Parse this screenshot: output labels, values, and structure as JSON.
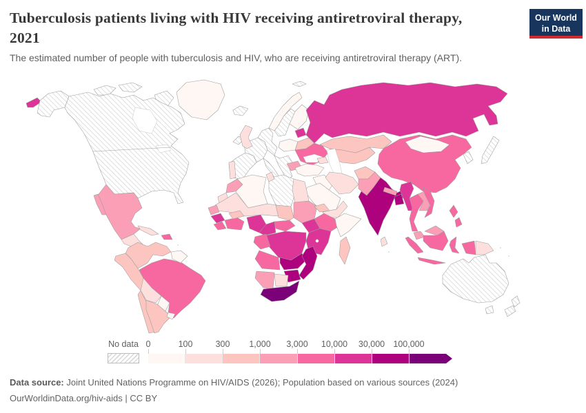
{
  "header": {
    "title_line1": "Tuberculosis patients living with HIV receiving antiretroviral therapy,",
    "title_line2": "2021",
    "subtitle": "The estimated number of people with tuberculosis and HIV, who are receiving antiretroviral therapy (ART).",
    "logo": {
      "line1": "Our World",
      "line2": "in Data",
      "bg_color": "#18365d",
      "accent_color": "#d12b31"
    }
  },
  "legend": {
    "no_data_label": "No data",
    "tick_labels": [
      "0",
      "100",
      "300",
      "1,000",
      "3,000",
      "10,000",
      "30,000",
      "100,000"
    ]
  },
  "footer": {
    "source_label": "Data source:",
    "source_text": " Joint United Nations Programme on HIV/AIDS (2026); Population based on various sources (2024)",
    "link_text": "OurWorldinData.org/hiv-aids",
    "license_sep": " | ",
    "license_text": "CC BY"
  },
  "chart_data": {
    "type": "heatmap",
    "subtype": "world-choropleth-map",
    "title": "Tuberculosis patients living with HIV receiving antiretroviral therapy, 2021",
    "year": "2021",
    "unit": "people receiving ART",
    "legend_position": "bottom",
    "bins": [
      {
        "range": "0-100",
        "color": "#fff7f3"
      },
      {
        "range": "100-300",
        "color": "#fde0dd"
      },
      {
        "range": "300-1,000",
        "color": "#fcc5c0"
      },
      {
        "range": "1,000-3,000",
        "color": "#fa9fb5"
      },
      {
        "range": "3,000-10,000",
        "color": "#f768a1"
      },
      {
        "range": "10,000-30,000",
        "color": "#dd3497"
      },
      {
        "range": "30,000-100,000",
        "color": "#ae017e"
      },
      {
        "range": "100,000+",
        "color": "#7a0177"
      }
    ],
    "no_data": {
      "label": "No data",
      "pattern": "diagonal-hatch",
      "hatch_color": "#d9d9d9"
    },
    "regions": {
      "canada-usa": {
        "label": "United States & Canada",
        "bin": -1
      },
      "greenland": {
        "label": "Greenland",
        "bin": 0
      },
      "iceland": {
        "label": "Iceland",
        "bin": -1
      },
      "mexico": {
        "label": "Mexico",
        "bin": 3
      },
      "central-america": {
        "label": "Central America",
        "bin": 1
      },
      "cuba": {
        "label": "Cuba",
        "bin": 1
      },
      "hispaniola": {
        "label": "Haiti / Dominican Republic",
        "bin": 4
      },
      "colombia-venezuela": {
        "label": "Colombia & Venezuela",
        "bin": 2
      },
      "guyanas": {
        "label": "Guyana & Suriname",
        "bin": 0
      },
      "ecuador-peru": {
        "label": "Ecuador & Peru",
        "bin": 2
      },
      "brazil": {
        "label": "Brazil",
        "bin": 4
      },
      "bolivia": {
        "label": "Bolivia",
        "bin": 1
      },
      "paraguay": {
        "label": "Paraguay",
        "bin": 0
      },
      "uruguay": {
        "label": "Uruguay",
        "bin": 0
      },
      "chile": {
        "label": "Chile",
        "bin": 2
      },
      "argentina": {
        "label": "Argentina",
        "bin": 2
      },
      "spain": {
        "label": "Spain",
        "bin": -1
      },
      "portugal": {
        "label": "Portugal",
        "bin": 1
      },
      "france": {
        "label": "France",
        "bin": -1
      },
      "central-europe": {
        "label": "Germany & Central Europe",
        "bin": -1
      },
      "italy": {
        "label": "Italy",
        "bin": -1
      },
      "balkans": {
        "label": "Balkans & Greece",
        "bin": -1
      },
      "ireland": {
        "label": "Ireland",
        "bin": -1
      },
      "united-kingdom": {
        "label": "United Kingdom",
        "bin": 1
      },
      "norway": {
        "label": "Norway",
        "bin": 0
      },
      "sweden": {
        "label": "Sweden",
        "bin": -1
      },
      "finland": {
        "label": "Finland",
        "bin": 0
      },
      "baltics": {
        "label": "Baltic states",
        "bin": 5
      },
      "poland": {
        "label": "Poland",
        "bin": 0
      },
      "belarus": {
        "label": "Belarus",
        "bin": 2
      },
      "ukraine": {
        "label": "Ukraine",
        "bin": 4
      },
      "romania": {
        "label": "Romania",
        "bin": 3
      },
      "svalbard": {
        "label": "Svalbard",
        "bin": -1
      },
      "russia": {
        "label": "Russia",
        "bin": 5
      },
      "kazakhstan": {
        "label": "Kazakhstan",
        "bin": 2
      },
      "central-asia": {
        "label": "Central Asia",
        "bin": 2
      },
      "caucasus": {
        "label": "Caucasus",
        "bin": 1
      },
      "turkey": {
        "label": "Turkey",
        "bin": 0
      },
      "syria-iraq": {
        "label": "Syria & Iraq",
        "bin": 0
      },
      "iran": {
        "label": "Iran",
        "bin": 1
      },
      "saudi-arabia": {
        "label": "Saudi Arabia",
        "bin": 0
      },
      "yemen-oman": {
        "label": "Yemen & Oman",
        "bin": 1
      },
      "afghanistan": {
        "label": "Afghanistan",
        "bin": 2
      },
      "pakistan": {
        "label": "Pakistan",
        "bin": 3
      },
      "india": {
        "label": "India",
        "bin": 6
      },
      "nepal": {
        "label": "Nepal",
        "bin": 3
      },
      "bangladesh": {
        "label": "Bangladesh",
        "bin": 6
      },
      "sri-lanka": {
        "label": "Sri Lanka",
        "bin": 1
      },
      "china": {
        "label": "China",
        "bin": 4
      },
      "mongolia": {
        "label": "Mongolia",
        "bin": 0
      },
      "korea": {
        "label": "Korea",
        "bin": -1
      },
      "japan": {
        "label": "Japan",
        "bin": -1
      },
      "myanmar": {
        "label": "Myanmar",
        "bin": 5
      },
      "thailand": {
        "label": "Thailand",
        "bin": 4
      },
      "laos-cambodia": {
        "label": "Laos & Cambodia",
        "bin": 3
      },
      "vietnam": {
        "label": "Vietnam",
        "bin": 4
      },
      "malaysia": {
        "label": "Malaysia",
        "bin": 3
      },
      "indonesia": {
        "label": "Indonesia",
        "bin": 4
      },
      "papua-new-guinea": {
        "label": "Papua New Guinea",
        "bin": 1
      },
      "philippines": {
        "label": "Philippines",
        "bin": 4
      },
      "morocco": {
        "label": "Morocco",
        "bin": 3
      },
      "western-sahara": {
        "label": "Western Sahara",
        "bin": 1
      },
      "algeria": {
        "label": "Algeria",
        "bin": 0
      },
      "tunisia": {
        "label": "Tunisia",
        "bin": 1
      },
      "libya": {
        "label": "Libya",
        "bin": -1
      },
      "egypt": {
        "label": "Egypt",
        "bin": 1
      },
      "sahel": {
        "label": "Mauritania, Mali & Niger",
        "bin": 1
      },
      "senegal": {
        "label": "Senegal",
        "bin": 3
      },
      "guinea": {
        "label": "Guinea",
        "bin": 5
      },
      "sierra-leone-liberia": {
        "label": "Sierra Leone & Liberia",
        "bin": 4
      },
      "cote-divoire-ghana": {
        "label": "Côte d'Ivoire & Ghana",
        "bin": 4
      },
      "burkina-faso": {
        "label": "Burkina Faso",
        "bin": 2
      },
      "nigeria": {
        "label": "Nigeria",
        "bin": 5
      },
      "cameroon": {
        "label": "Cameroon",
        "bin": 5
      },
      "central-african-republic": {
        "label": "Central African Republic",
        "bin": 4
      },
      "chad": {
        "label": "Chad",
        "bin": 2
      },
      "sudan": {
        "label": "Sudan",
        "bin": 3
      },
      "eritrea": {
        "label": "Eritrea",
        "bin": 2
      },
      "ethiopia": {
        "label": "Ethiopia",
        "bin": 4
      },
      "somalia": {
        "label": "Somalia",
        "bin": 0
      },
      "south-sudan": {
        "label": "South Sudan",
        "bin": 5
      },
      "east-africa": {
        "label": "Uganda, Kenya & Tanzania",
        "bin": 5
      },
      "drc": {
        "label": "Democratic Republic of Congo",
        "bin": 5
      },
      "gabon-congo": {
        "label": "Gabon & Congo",
        "bin": 4
      },
      "angola": {
        "label": "Angola",
        "bin": 4
      },
      "zambia": {
        "label": "Zambia",
        "bin": 6
      },
      "malawi-mozambique": {
        "label": "Malawi & Mozambique",
        "bin": 6
      },
      "zimbabwe": {
        "label": "Zimbabwe",
        "bin": 6
      },
      "namibia": {
        "label": "Namibia",
        "bin": 3
      },
      "botswana": {
        "label": "Botswana",
        "bin": 1
      },
      "south-africa": {
        "label": "South Africa",
        "bin": 7
      },
      "madagascar": {
        "label": "Madagascar",
        "bin": 2
      },
      "australia": {
        "label": "Australia",
        "bin": -1
      },
      "new-zealand": {
        "label": "New Zealand",
        "bin": -1
      }
    }
  }
}
